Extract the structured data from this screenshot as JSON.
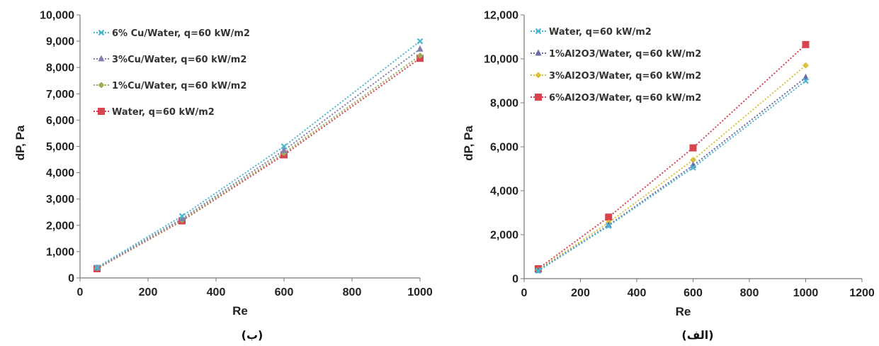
{
  "charts": [
    {
      "type": "line",
      "caption": "(ب)",
      "xlabel": "Re",
      "ylabel": "dP, Pa",
      "xlim": [
        0,
        1000
      ],
      "ylim": [
        0,
        10000
      ],
      "x_ticks": [
        "0",
        "200",
        "400",
        "600",
        "800",
        "1000"
      ],
      "y_ticks": [
        "0",
        "1,000",
        "2,000",
        "3,000",
        "4,000",
        "5,000",
        "6,000",
        "7,000",
        "8,000",
        "9,000",
        "10,000"
      ],
      "legend_position": "top-left",
      "grid": false,
      "series": [
        {
          "name": "6% Cu/Water, q=60 kW/m2",
          "marker": "x",
          "color": "#4bb6d0",
          "x": [
            50,
            300,
            600,
            1000
          ],
          "y": [
            400,
            2350,
            5000,
            9000
          ]
        },
        {
          "name": "3%Cu/Water, q=60 kW/m2",
          "marker": "triangle",
          "color": "#7f7fb0",
          "x": [
            50,
            300,
            600,
            1000
          ],
          "y": [
            380,
            2250,
            4850,
            8700
          ]
        },
        {
          "name": "1%Cu/Water, q=60 kW/m2",
          "marker": "diamond",
          "color": "#9aab5a",
          "x": [
            50,
            300,
            600,
            1000
          ],
          "y": [
            370,
            2200,
            4750,
            8450
          ]
        },
        {
          "name": "Water, q=60 kW/m2",
          "marker": "square",
          "color": "#d9434f",
          "x": [
            50,
            300,
            600,
            1000
          ],
          "y": [
            350,
            2170,
            4680,
            8350
          ]
        }
      ]
    },
    {
      "type": "line",
      "caption": "(الف)",
      "xlabel": "Re",
      "ylabel": "dP, Pa",
      "xlim": [
        0,
        1200
      ],
      "ylim": [
        0,
        12000
      ],
      "x_ticks": [
        "0",
        "200",
        "400",
        "600",
        "800",
        "1000",
        "1200"
      ],
      "y_ticks": [
        "0",
        "2,000",
        "4,000",
        "6,000",
        "8,000",
        "10,000",
        "12,000"
      ],
      "legend_position": "top-left",
      "grid": false,
      "series": [
        {
          "name": "Water, q=60 kW/m2",
          "marker": "x",
          "color": "#4bb6d0",
          "x": [
            50,
            300,
            600,
            1000
          ],
          "y": [
            350,
            2400,
            5050,
            9000
          ]
        },
        {
          "name": "1%Al2O3/Water, q=60 kW/m2",
          "marker": "triangle",
          "color": "#6a6aa8",
          "x": [
            50,
            300,
            600,
            1000
          ],
          "y": [
            370,
            2430,
            5150,
            9150
          ]
        },
        {
          "name": "3%Al2O3/Water, q=60 kW/m2",
          "marker": "diamond",
          "color": "#d9c23a",
          "x": [
            50,
            300,
            600,
            1000
          ],
          "y": [
            400,
            2550,
            5400,
            9700
          ]
        },
        {
          "name": "6%Al2O3/Water, q=60 kW/m2",
          "marker": "square",
          "color": "#d9434f",
          "x": [
            50,
            300,
            600,
            1000
          ],
          "y": [
            450,
            2800,
            5950,
            10650
          ]
        }
      ]
    }
  ]
}
